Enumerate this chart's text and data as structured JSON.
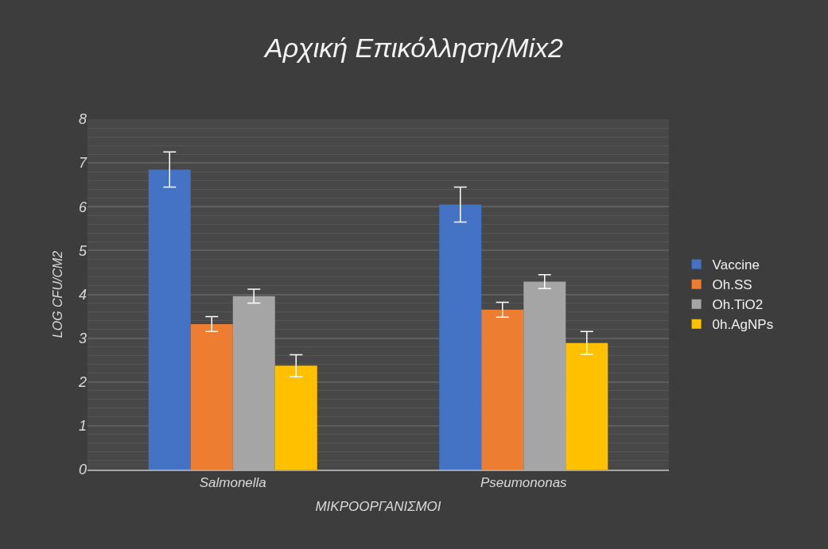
{
  "chart_data": {
    "type": "bar",
    "title": "Αρχική Επικόλληση/Mix2",
    "xlabel": "ΜΙΚΡΟΟΡΓΑΝΙΣΜΟΙ",
    "ylabel": "LOG CFU/CM2",
    "categories": [
      "Salmonella",
      "Pseumononas"
    ],
    "series": [
      {
        "name": "Vaccine",
        "color": "#4472c4",
        "values": [
          6.85,
          6.05
        ],
        "errors": [
          0.4,
          0.4
        ]
      },
      {
        "name": "Oh.SS",
        "color": "#ed7d31",
        "values": [
          3.32,
          3.65
        ],
        "errors": [
          0.17,
          0.17
        ]
      },
      {
        "name": "Oh.TiO2",
        "color": "#a5a5a5",
        "values": [
          3.96,
          4.29
        ],
        "errors": [
          0.16,
          0.16
        ]
      },
      {
        "name": "0h.AgNPs",
        "color": "#ffc000",
        "values": [
          2.37,
          2.89
        ],
        "errors": [
          0.25,
          0.26
        ]
      }
    ],
    "ylim": [
      0,
      8
    ],
    "yticks": [
      0,
      1,
      2,
      3,
      4,
      5,
      6,
      7,
      8
    ],
    "grid": "y",
    "legend": "right"
  }
}
